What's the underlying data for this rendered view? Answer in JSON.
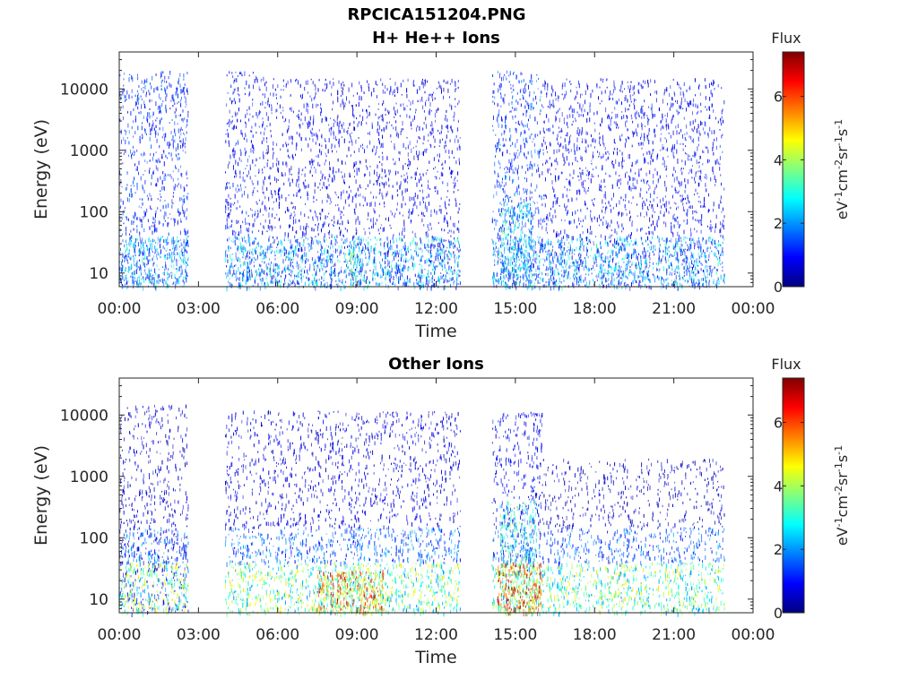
{
  "title": "RPCICA151204.PNG",
  "colormap": [
    "#00007f",
    "#0000ff",
    "#007fff",
    "#00ffff",
    "#7fff7f",
    "#ffff00",
    "#ff7f00",
    "#ff0000",
    "#7f0000"
  ],
  "chart_data": [
    {
      "type": "heatmap",
      "title": "H+ He++ Ions",
      "xlabel": "Time",
      "ylabel": "Energy (eV)",
      "x_ticks": [
        "00:00",
        "03:00",
        "06:00",
        "09:00",
        "12:00",
        "15:00",
        "18:00",
        "21:00",
        "00:00"
      ],
      "xlim_hours": [
        0,
        24
      ],
      "y_scale": "log",
      "y_ticks": [
        10,
        100,
        1000,
        10000
      ],
      "y_tick_labels": [
        "10",
        "100",
        "1000",
        "10000"
      ],
      "ylim": [
        6,
        40000
      ],
      "data_gaps_hours": [
        [
          2.6,
          4.0
        ],
        [
          12.9,
          14.1
        ]
      ],
      "data_end_hours": 22.9,
      "colorbar": {
        "title": "Flux",
        "label": "eV-1cm-2sr-1s-1",
        "ticks": [
          "0",
          "2",
          "4",
          "6"
        ],
        "range": [
          0,
          7.4
        ]
      },
      "regions": [
        {
          "t": [
            0,
            2.6
          ],
          "e": [
            6,
            20000
          ],
          "flux": 1.2
        },
        {
          "t": [
            4.0,
            5.5
          ],
          "e": [
            6,
            20000
          ],
          "flux": 1.0
        },
        {
          "t": [
            5.5,
            12.9
          ],
          "e": [
            6,
            15000
          ],
          "flux": 0.8
        },
        {
          "t": [
            14.1,
            16.0
          ],
          "e": [
            6,
            20000
          ],
          "flux": 1.3
        },
        {
          "t": [
            16.0,
            22.9
          ],
          "e": [
            6,
            15000
          ],
          "flux": 0.9
        },
        {
          "t": [
            0,
            22.9
          ],
          "e": [
            6,
            40
          ],
          "flux": 2.3
        },
        {
          "t": [
            14.4,
            15.6
          ],
          "e": [
            10,
            150
          ],
          "flux": 2.6
        },
        {
          "t": [
            8.7,
            9.0
          ],
          "e": [
            6,
            25
          ],
          "flux": 3.4
        }
      ]
    },
    {
      "type": "heatmap",
      "title": "Other Ions",
      "xlabel": "Time",
      "ylabel": "Energy (eV)",
      "x_ticks": [
        "00:00",
        "03:00",
        "06:00",
        "09:00",
        "12:00",
        "15:00",
        "18:00",
        "21:00",
        "00:00"
      ],
      "xlim_hours": [
        0,
        24
      ],
      "y_scale": "log",
      "y_ticks": [
        10,
        100,
        1000,
        10000
      ],
      "y_tick_labels": [
        "10",
        "100",
        "1000",
        "10000"
      ],
      "ylim": [
        6,
        40000
      ],
      "data_gaps_hours": [
        [
          2.6,
          4.0
        ],
        [
          12.9,
          14.1
        ]
      ],
      "data_end_hours": 22.9,
      "colorbar": {
        "title": "Flux",
        "label": "eV-1cm-2sr-1s-1",
        "ticks": [
          "0",
          "2",
          "4",
          "6"
        ],
        "range": [
          0,
          7.4
        ]
      },
      "regions": [
        {
          "t": [
            0,
            2.6
          ],
          "e": [
            6,
            15000
          ],
          "flux": 0.6
        },
        {
          "t": [
            4.0,
            12.9
          ],
          "e": [
            150,
            12000
          ],
          "flux": 0.7
        },
        {
          "t": [
            14.1,
            16.0
          ],
          "e": [
            150,
            12000
          ],
          "flux": 0.9
        },
        {
          "t": [
            16.0,
            22.9
          ],
          "e": [
            150,
            2000
          ],
          "flux": 0.5
        },
        {
          "t": [
            0,
            22.9
          ],
          "e": [
            40,
            150
          ],
          "flux": 1.6
        },
        {
          "t": [
            0,
            22.9
          ],
          "e": [
            6,
            40
          ],
          "flux": 3.4
        },
        {
          "t": [
            7.5,
            10.0
          ],
          "e": [
            6,
            30
          ],
          "flux": 5.0
        },
        {
          "t": [
            14.3,
            16.0
          ],
          "e": [
            6,
            40
          ],
          "flux": 5.4
        },
        {
          "t": [
            14.4,
            15.8
          ],
          "e": [
            40,
            400
          ],
          "flux": 2.8
        }
      ]
    }
  ]
}
